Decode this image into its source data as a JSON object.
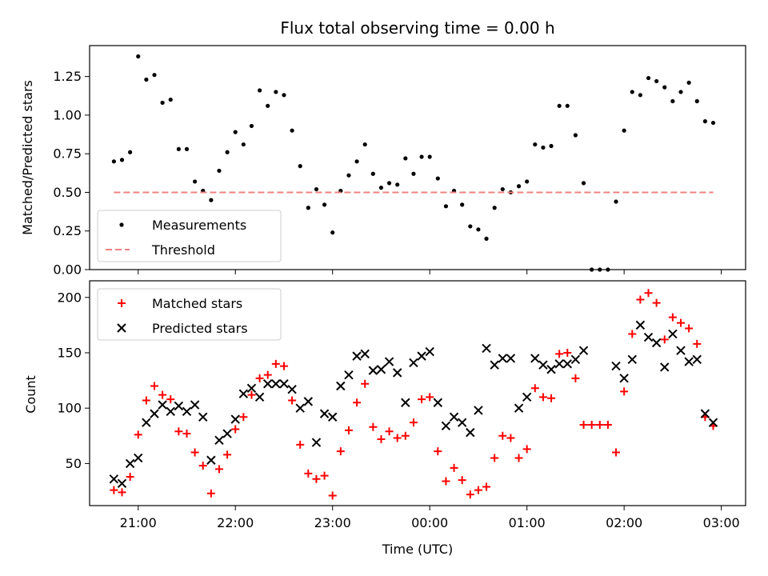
{
  "chart_data": [
    {
      "type": "scatter",
      "title": "Flux total observing time = 0.00 h",
      "xlabel": "",
      "ylabel": "Matched/Predicted stars",
      "ylim": [
        0,
        1.45
      ],
      "xlim": [
        "20:30",
        "03:15"
      ],
      "yticks": [
        "0.00",
        "0.25",
        "0.50",
        "0.75",
        "1.00",
        "1.25"
      ],
      "legend_placement": "lower-left",
      "grid": false,
      "series": [
        {
          "name": "Measurements",
          "color": "#000000",
          "marker": "dot",
          "x": [
            "20:45",
            "20:50",
            "20:55",
            "21:00",
            "21:05",
            "21:10",
            "21:15",
            "21:20",
            "21:25",
            "21:30",
            "21:35",
            "21:40",
            "21:45",
            "21:50",
            "21:55",
            "22:00",
            "22:05",
            "22:10",
            "22:15",
            "22:20",
            "22:25",
            "22:30",
            "22:35",
            "22:40",
            "22:45",
            "22:50",
            "22:55",
            "23:00",
            "23:05",
            "23:10",
            "23:15",
            "23:20",
            "23:25",
            "23:30",
            "23:35",
            "23:40",
            "23:45",
            "23:50",
            "23:55",
            "00:00",
            "00:05",
            "00:10",
            "00:15",
            "00:20",
            "00:25",
            "00:30",
            "00:35",
            "00:40",
            "00:45",
            "00:50",
            "00:55",
            "01:00",
            "01:05",
            "01:10",
            "01:15",
            "01:20",
            "01:25",
            "01:30",
            "01:35",
            "01:40",
            "01:45",
            "01:50",
            "01:55",
            "02:00",
            "02:05",
            "02:10",
            "02:15",
            "02:20",
            "02:25",
            "02:30",
            "02:35",
            "02:40",
            "02:45",
            "02:50",
            "02:55"
          ],
          "y": [
            0.7,
            0.71,
            0.76,
            1.38,
            1.23,
            1.26,
            1.08,
            1.1,
            0.78,
            0.78,
            0.57,
            0.51,
            0.45,
            0.64,
            0.76,
            0.89,
            0.81,
            0.93,
            1.16,
            1.06,
            1.15,
            1.13,
            0.9,
            0.67,
            0.4,
            0.52,
            0.42,
            0.24,
            0.51,
            0.61,
            0.7,
            0.81,
            0.62,
            0.53,
            0.56,
            0.55,
            0.72,
            0.62,
            0.73,
            0.73,
            0.59,
            0.41,
            0.51,
            0.42,
            0.28,
            0.26,
            0.2,
            0.4,
            0.52,
            0.5,
            0.54,
            0.57,
            0.81,
            0.79,
            0.8,
            1.06,
            1.06,
            0.87,
            0.56,
            0.0,
            0.0,
            0.0,
            0.44,
            0.9,
            1.15,
            1.13,
            1.24,
            1.22,
            1.18,
            1.09,
            1.15,
            1.21,
            1.09,
            0.96,
            0.95
          ]
        },
        {
          "name": "Threshold",
          "color": "#f08080",
          "style": "dashed",
          "x": [
            "20:45",
            "02:55"
          ],
          "y": [
            0.5,
            0.5
          ]
        }
      ]
    },
    {
      "type": "scatter",
      "title": "",
      "xlabel": "Time (UTC)",
      "ylabel": "Count",
      "ylim": [
        12,
        215
      ],
      "xlim": [
        "20:30",
        "03:15"
      ],
      "xticks": [
        "21:00",
        "22:00",
        "23:00",
        "00:00",
        "01:00",
        "02:00",
        "03:00"
      ],
      "yticks": [
        "50",
        "100",
        "150",
        "200"
      ],
      "legend_placement": "top-left",
      "grid": false,
      "series": [
        {
          "name": "Matched stars",
          "color": "#ff0000",
          "marker": "plus",
          "x": [
            "20:45",
            "20:50",
            "20:55",
            "21:00",
            "21:05",
            "21:10",
            "21:15",
            "21:20",
            "21:25",
            "21:30",
            "21:35",
            "21:40",
            "21:45",
            "21:50",
            "21:55",
            "22:00",
            "22:05",
            "22:10",
            "22:15",
            "22:20",
            "22:25",
            "22:30",
            "22:35",
            "22:40",
            "22:45",
            "22:50",
            "22:55",
            "23:00",
            "23:05",
            "23:10",
            "23:15",
            "23:20",
            "23:25",
            "23:30",
            "23:35",
            "23:40",
            "23:45",
            "23:50",
            "23:55",
            "00:00",
            "00:05",
            "00:10",
            "00:15",
            "00:20",
            "00:25",
            "00:30",
            "00:35",
            "00:40",
            "00:45",
            "00:50",
            "00:55",
            "01:00",
            "01:05",
            "01:10",
            "01:15",
            "01:20",
            "01:25",
            "01:30",
            "01:35",
            "01:40",
            "01:45",
            "01:50",
            "01:55",
            "02:00",
            "02:05",
            "02:10",
            "02:15",
            "02:20",
            "02:25",
            "02:30",
            "02:35",
            "02:40",
            "02:45",
            "02:50",
            "02:55"
          ],
          "y": [
            26,
            24,
            38,
            76,
            107,
            120,
            112,
            108,
            79,
            77,
            60,
            48,
            23,
            45,
            58,
            81,
            92,
            112,
            127,
            130,
            140,
            138,
            107,
            67,
            41,
            36,
            39,
            21,
            61,
            80,
            105,
            122,
            83,
            72,
            79,
            73,
            75,
            87,
            108,
            110,
            61,
            34,
            46,
            35,
            22,
            26,
            29,
            55,
            75,
            73,
            55,
            63,
            118,
            110,
            109,
            149,
            150,
            127,
            85,
            85,
            85,
            85,
            60,
            115,
            167,
            198,
            204,
            195,
            162,
            182,
            177,
            172,
            158,
            92,
            84
          ]
        },
        {
          "name": "Predicted stars",
          "color": "#000000",
          "marker": "x",
          "x": [
            "20:45",
            "20:50",
            "20:55",
            "21:00",
            "21:05",
            "21:10",
            "21:15",
            "21:20",
            "21:25",
            "21:30",
            "21:35",
            "21:40",
            "21:45",
            "21:50",
            "21:55",
            "22:00",
            "22:05",
            "22:10",
            "22:15",
            "22:20",
            "22:25",
            "22:30",
            "22:35",
            "22:40",
            "22:45",
            "22:50",
            "22:55",
            "23:00",
            "23:05",
            "23:10",
            "23:15",
            "23:20",
            "23:25",
            "23:30",
            "23:35",
            "23:40",
            "23:45",
            "23:50",
            "23:55",
            "00:00",
            "00:05",
            "00:10",
            "00:15",
            "00:20",
            "00:25",
            "00:30",
            "00:35",
            "00:40",
            "00:45",
            "00:50",
            "00:55",
            "01:00",
            "01:05",
            "01:10",
            "01:15",
            "01:20",
            "01:25",
            "01:30",
            "01:35",
            "01:55",
            "02:00",
            "02:05",
            "02:10",
            "02:15",
            "02:20",
            "02:25",
            "02:30",
            "02:35",
            "02:40",
            "02:45",
            "02:50",
            "02:55"
          ],
          "y": [
            36,
            32,
            50,
            55,
            87,
            95,
            103,
            97,
            102,
            97,
            103,
            92,
            53,
            71,
            77,
            90,
            113,
            118,
            110,
            122,
            122,
            122,
            117,
            100,
            106,
            69,
            95,
            92,
            120,
            130,
            147,
            149,
            134,
            135,
            142,
            132,
            105,
            141,
            147,
            151,
            105,
            84,
            92,
            87,
            78,
            98,
            154,
            139,
            145,
            145,
            100,
            110,
            145,
            139,
            135,
            140,
            140,
            144,
            152,
            138,
            127,
            144,
            175,
            164,
            159,
            137,
            167,
            152,
            142,
            144,
            95,
            87
          ]
        }
      ]
    }
  ]
}
